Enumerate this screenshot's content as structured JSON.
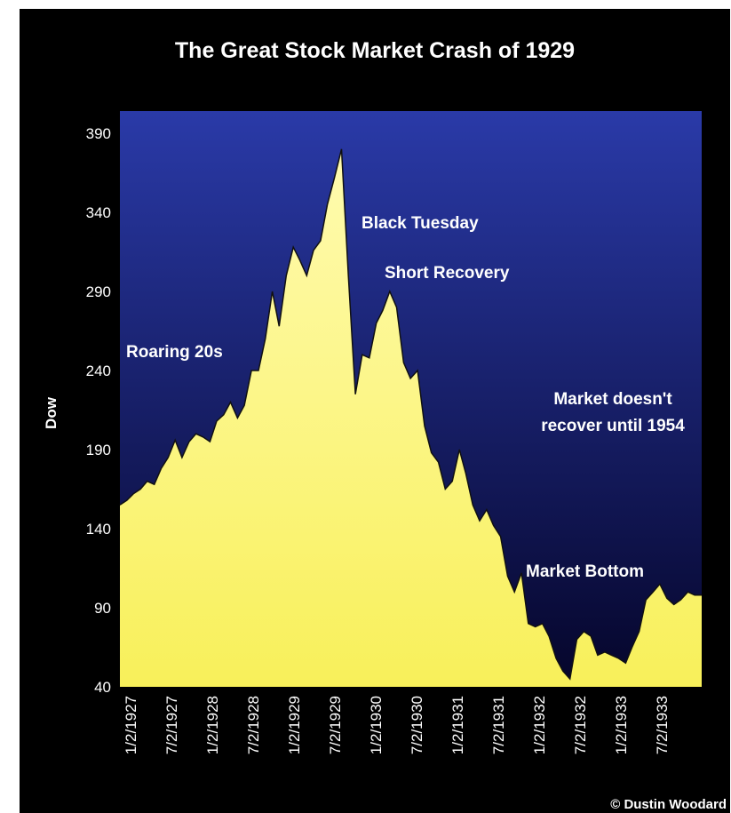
{
  "chart_data": {
    "type": "area",
    "title": "The Great Stock Market Crash of 1929",
    "ylabel": "Dow",
    "xlabel": "",
    "ylim": [
      40,
      390
    ],
    "yticks": [
      390,
      340,
      290,
      240,
      190,
      140,
      90,
      40
    ],
    "xticks": [
      "1/2/1927",
      "7/2/1927",
      "1/2/1928",
      "7/2/1928",
      "1/2/1929",
      "7/2/1929",
      "1/2/1930",
      "7/2/1930",
      "1/2/1931",
      "7/2/1931",
      "1/2/1932",
      "7/2/1932",
      "1/2/1933",
      "7/2/1933"
    ],
    "grid": false,
    "colors": {
      "area": "#f8f05a",
      "area_top": "#fffbb0",
      "plot_top": "#2a3aa8",
      "plot_bottom": "#05052a",
      "background": "#000000"
    },
    "x": [
      "1927-01-01",
      "1927-02-01",
      "1927-03-01",
      "1927-04-01",
      "1927-05-01",
      "1927-06-01",
      "1927-07-01",
      "1927-08-01",
      "1927-09-01",
      "1927-10-01",
      "1927-11-01",
      "1927-12-01",
      "1928-01-01",
      "1928-02-01",
      "1928-03-01",
      "1928-04-01",
      "1928-05-01",
      "1928-06-01",
      "1928-07-01",
      "1928-08-01",
      "1928-09-01",
      "1928-10-01",
      "1928-11-01",
      "1928-12-01",
      "1929-01-01",
      "1929-02-01",
      "1929-03-01",
      "1929-04-01",
      "1929-05-01",
      "1929-06-01",
      "1929-07-01",
      "1929-08-01",
      "1929-09-01",
      "1929-10-01",
      "1929-11-01",
      "1929-12-01",
      "1930-01-01",
      "1930-02-01",
      "1930-03-01",
      "1930-04-01",
      "1930-05-01",
      "1930-06-01",
      "1930-07-01",
      "1930-08-01",
      "1930-09-01",
      "1930-10-01",
      "1930-11-01",
      "1930-12-01",
      "1931-01-01",
      "1931-02-01",
      "1931-03-01",
      "1931-04-01",
      "1931-05-01",
      "1931-06-01",
      "1931-07-01",
      "1931-08-01",
      "1931-09-01",
      "1931-10-01",
      "1931-11-01",
      "1931-12-01",
      "1932-01-01",
      "1932-02-01",
      "1932-03-01",
      "1932-04-01",
      "1932-05-01",
      "1932-06-01",
      "1932-07-01",
      "1932-08-01",
      "1932-09-01",
      "1932-10-01",
      "1932-11-01",
      "1932-12-01",
      "1933-01-01",
      "1933-02-01",
      "1933-03-01",
      "1933-04-01",
      "1933-05-01",
      "1933-06-01",
      "1933-07-01",
      "1933-08-01",
      "1933-09-01",
      "1933-10-01",
      "1933-11-01",
      "1933-12-01"
    ],
    "series": [
      {
        "values": [
          155,
          158,
          162,
          165,
          170,
          168,
          178,
          185,
          196,
          185,
          195,
          200,
          198,
          195,
          208,
          212,
          220,
          210,
          218,
          240,
          240,
          260,
          290,
          268,
          300,
          318,
          310,
          300,
          316,
          322,
          345,
          362,
          380,
          300,
          225,
          250,
          248,
          270,
          278,
          290,
          280,
          245,
          235,
          240,
          205,
          188,
          182,
          165,
          170,
          190,
          175,
          155,
          145,
          152,
          142,
          135,
          110,
          100,
          112,
          80,
          78,
          80,
          72,
          58,
          50,
          45,
          70,
          75,
          72,
          60,
          62,
          60,
          58,
          55,
          65,
          75,
          95,
          100,
          105,
          96,
          92,
          95,
          100,
          98
        ]
      }
    ],
    "annotations": [
      "Roaring 20s",
      "Black Tuesday",
      "Short Recovery",
      "Market doesn't",
      "recover until 1954",
      "Market Bottom"
    ],
    "credit": "© Dustin Woodard"
  }
}
